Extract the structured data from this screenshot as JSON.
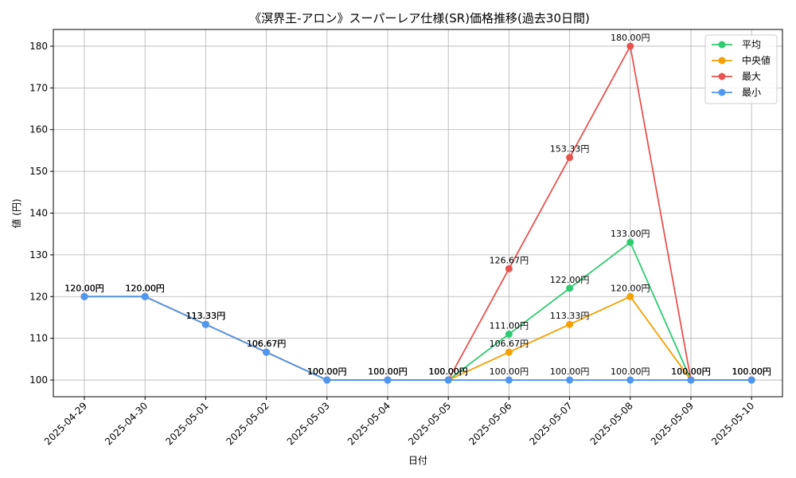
{
  "chart_data": {
    "type": "line",
    "title": "《溟界王-アロン》スーパーレア仕様(SR)価格推移(過去30日間)",
    "xlabel": "日付",
    "ylabel": "値 (円)",
    "ylim": [
      96,
      184
    ],
    "yticks": [
      100,
      110,
      120,
      130,
      140,
      150,
      160,
      170,
      180
    ],
    "grid": true,
    "legend_position": "top-right",
    "categories": [
      "2025-04-29",
      "2025-04-30",
      "2025-05-01",
      "2025-05-02",
      "2025-05-03",
      "2025-05-04",
      "2025-05-05",
      "2025-05-06",
      "2025-05-07",
      "2025-05-08",
      "2025-05-09",
      "2025-05-10"
    ],
    "series": [
      {
        "name": "平均",
        "color": "#2ecc71",
        "values": [
          120.0,
          120.0,
          113.33,
          106.67,
          100.0,
          100.0,
          100.0,
          111.0,
          122.0,
          133.0,
          100.0,
          100.0
        ],
        "labels": [
          "120.00円",
          "120.00円",
          "113.33円",
          "106.67円",
          "100.00円",
          "100.00円",
          "100.00円",
          "111.00円",
          "122.00円",
          "133.00円",
          "100.00円",
          "100.00円"
        ]
      },
      {
        "name": "中央値",
        "color": "#f5a000",
        "values": [
          120.0,
          120.0,
          113.33,
          106.67,
          100.0,
          100.0,
          100.0,
          106.67,
          113.33,
          120.0,
          100.0,
          100.0
        ],
        "labels": [
          "120.00円",
          "120.00円",
          "113.33円",
          "106.67円",
          "100.00円",
          "100.00円",
          "100.00円",
          "106.67円",
          "113.33円",
          "120.00円",
          "100.00円",
          "100.00円"
        ]
      },
      {
        "name": "最大",
        "color": "#e8534f",
        "values": [
          120.0,
          120.0,
          113.33,
          106.67,
          100.0,
          100.0,
          100.0,
          126.67,
          153.33,
          180.0,
          100.0,
          100.0
        ],
        "labels": [
          "120.00円",
          "120.00円",
          "113.33円",
          "106.67円",
          "100.00円",
          "100.00円",
          "100.00円",
          "126.67円",
          "153.33円",
          "180.00円",
          "100.00円",
          "100.00円"
        ]
      },
      {
        "name": "最小",
        "color": "#4e97f0",
        "values": [
          120.0,
          120.0,
          113.33,
          106.67,
          100.0,
          100.0,
          100.0,
          100.0,
          100.0,
          100.0,
          100.0,
          100.0
        ],
        "labels": [
          "120.00円",
          "120.00円",
          "113.33円",
          "106.67円",
          "100.00円",
          "100.00円",
          "100.00円",
          "100.00円",
          "100.00円",
          "100.00円",
          "100.00円",
          "100.00円"
        ]
      }
    ]
  }
}
